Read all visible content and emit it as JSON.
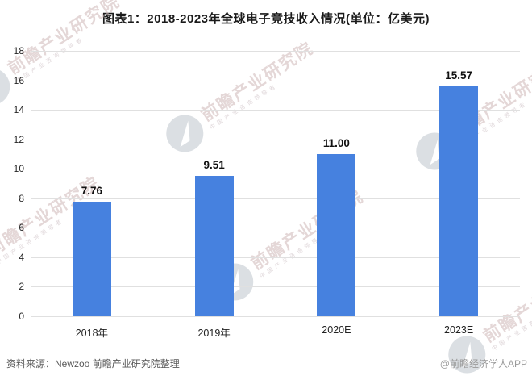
{
  "chart_data": {
    "type": "bar",
    "title": "图表1：2018-2023年全球电子竞技收入情况(单位：亿美元)",
    "categories": [
      "2018年",
      "2019年",
      "2020E",
      "2023E"
    ],
    "values": [
      7.76,
      9.51,
      11.0,
      15.57
    ],
    "value_labels": [
      "7.76",
      "9.51",
      "11.00",
      "15.57"
    ],
    "xlabel": "",
    "ylabel": "",
    "ylim": [
      0,
      18
    ],
    "ytick_step": 2,
    "grid": true,
    "legend": false,
    "bar_color": "#4681df"
  },
  "footer": {
    "source": "资料来源：Newzoo 前瞻产业研究院整理",
    "credit": "@前瞻经济学人APP"
  },
  "watermark": {
    "text": "前瞻产业研究院",
    "subtext": "中国产业咨询领导者",
    "logo": "qianzhan-circle-logo"
  },
  "colors": {
    "bar": "#4681df",
    "grid": "#e0e0e0",
    "title_text": "#1a1a1a",
    "value_text": "#111111",
    "source_text": "#595959",
    "credit_text": "#9a9a9a"
  }
}
